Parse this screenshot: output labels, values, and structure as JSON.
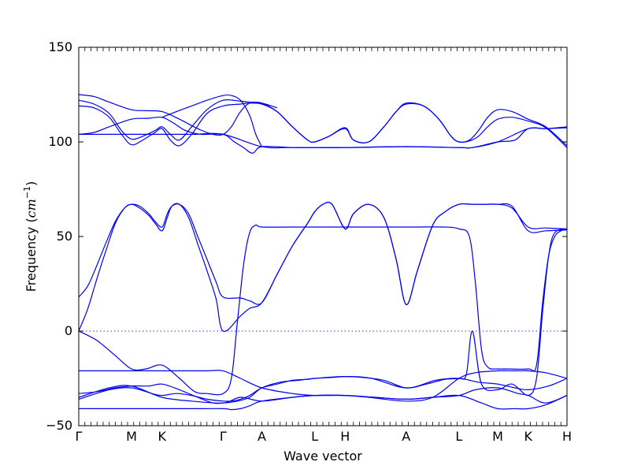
{
  "chart_data": {
    "type": "line",
    "title": "",
    "xlabel": "Wave vector",
    "ylabel_prefix": "Frequency (",
    "ylabel_unit": "cm",
    "ylabel_exp": "−1",
    "ylabel_suffix": ")",
    "ylim": [
      -50,
      150
    ],
    "yticks": [
      -50,
      0,
      50,
      100,
      150
    ],
    "xlim": [
      0,
      16
    ],
    "kpoints": [
      {
        "label": "Γ",
        "x": 0
      },
      {
        "label": "M",
        "x": 1.73
      },
      {
        "label": "K",
        "x": 2.73
      },
      {
        "label": "Γ",
        "x": 4.73
      },
      {
        "label": "A",
        "x": 6.0
      },
      {
        "label": "L",
        "x": 7.73
      },
      {
        "label": "H",
        "x": 8.73
      },
      {
        "label": "A",
        "x": 10.73
      },
      {
        "label": "L",
        "x": 12.46
      },
      {
        "label": "M",
        "x": 13.73
      },
      {
        "label": "K",
        "x": 14.73
      },
      {
        "label": "H",
        "x": 16.0
      }
    ],
    "series": [
      {
        "x": [
          0,
          0.3,
          0.6,
          0.9,
          1.2,
          1.5,
          1.73,
          2.0,
          2.3,
          2.5,
          2.73,
          2.9,
          3.05,
          3.3,
          3.6,
          3.9,
          4.2,
          4.5,
          4.73,
          5.3,
          5.6,
          6.0,
          6.5,
          7.0,
          7.5,
          7.73,
          8.0,
          8.3,
          8.73,
          9.0,
          9.5,
          10.0,
          10.4,
          10.73,
          11.1,
          11.6,
          12.0,
          12.46,
          12.9,
          13.3,
          13.73,
          14.2,
          14.73,
          15.3,
          16.0
        ],
        "y": [
          0,
          12,
          28,
          43,
          57,
          65,
          67,
          65,
          61,
          57,
          53,
          60,
          66,
          67,
          60,
          46,
          32,
          17,
          0,
          8,
          12,
          15,
          30,
          45,
          57,
          63,
          67,
          67,
          54,
          62,
          67,
          60,
          38,
          14,
          32,
          56,
          63,
          67,
          67,
          67,
          67,
          65,
          55,
          54.5,
          54
        ]
      },
      {
        "x": [
          0,
          0.3,
          0.6,
          0.9,
          1.2,
          1.5,
          1.73,
          2.0,
          2.3,
          2.5,
          2.73,
          2.9,
          3.05,
          3.3,
          3.6,
          3.9,
          4.2,
          4.5,
          4.73,
          5.3,
          5.6,
          6.0,
          6.5,
          7.0,
          7.5,
          7.73,
          8.0,
          8.3,
          8.73,
          9.0,
          9.5,
          10.0,
          10.4,
          10.73,
          11.1,
          11.6,
          12.0,
          12.46,
          12.9,
          13.3,
          13.73,
          14.2,
          14.73,
          15.3,
          16.0
        ],
        "y": [
          18,
          24,
          35,
          47,
          58,
          65,
          67,
          66,
          62,
          58,
          55,
          62,
          66,
          67,
          62,
          50,
          38,
          26,
          18,
          17.5,
          16,
          15,
          30,
          45,
          57,
          63,
          67,
          67,
          54,
          62,
          67,
          60,
          38,
          14,
          32,
          56,
          63,
          67,
          67,
          67,
          67,
          66,
          53,
          53,
          53.5
        ]
      },
      {
        "x": [
          0,
          0.6,
          1.2,
          1.73,
          2.2,
          2.73,
          3.3,
          3.8,
          4.2,
          4.73,
          5.0,
          5.2,
          5.4,
          5.6,
          5.8,
          6.0,
          7.0,
          8.0,
          9.0,
          10.0,
          11.0,
          12.0,
          12.46,
          12.8,
          13.0,
          13.2,
          13.4,
          13.73,
          14.0,
          14.73,
          15.0,
          15.2,
          15.4,
          15.6,
          15.8,
          16.0
        ],
        "y": [
          0,
          -5,
          -13,
          -20,
          -20,
          -18,
          -25,
          -32,
          -33,
          -33,
          -25,
          5,
          35,
          52,
          56,
          55,
          55,
          55,
          55,
          55,
          55,
          55,
          54,
          50,
          25,
          -10,
          -19,
          -20,
          -20,
          -20,
          -18,
          15,
          40,
          50,
          53,
          54
        ]
      },
      {
        "x": [
          0,
          1.0,
          1.73,
          2.4,
          2.73,
          3.2,
          3.7,
          4.2,
          4.73,
          5.0,
          5.3,
          5.6,
          6.0,
          6.5,
          7.0,
          7.5,
          7.73,
          8.3,
          8.73,
          9.3,
          10.0,
          10.73,
          11.4,
          12.0,
          12.46,
          12.7,
          12.9,
          13.2,
          13.73,
          14.2,
          14.73,
          15.0,
          15.2,
          15.4,
          15.6,
          16.0
        ],
        "y": [
          -36,
          -31,
          -30,
          -33,
          -34,
          -33,
          -34,
          -36,
          -37,
          -37,
          -36,
          -34,
          -30,
          -28,
          -26,
          -25.5,
          -25,
          -24.5,
          -24,
          -24.5,
          -26,
          -30,
          -28,
          -25.5,
          -25,
          -23,
          0,
          -28,
          -31,
          -28,
          -34,
          -25,
          10,
          40,
          52,
          54
        ]
      },
      {
        "x": [
          0,
          1.0,
          1.73,
          2.73,
          3.5,
          4.2,
          4.73,
          5.3,
          6.0,
          7.0,
          7.73,
          8.73,
          9.5,
          10.73,
          11.6,
          12.46,
          13.0,
          13.73,
          14.3,
          14.73,
          15.3,
          16.0
        ],
        "y": [
          -21,
          -21,
          -21,
          -21,
          -21,
          -21,
          -21,
          -25,
          -30,
          -33,
          -34,
          -34,
          -35,
          -37,
          -35,
          -25,
          -22,
          -21,
          -21,
          -21,
          -22,
          -25
        ]
      },
      {
        "x": [
          0,
          0.6,
          1.2,
          1.73,
          2.3,
          2.73,
          3.3,
          3.9,
          4.4,
          4.73,
          5.2,
          5.6,
          6.0,
          6.6,
          7.2,
          7.73,
          8.73,
          9.6,
          10.73,
          11.7,
          12.46,
          13.1,
          13.73,
          14.3,
          14.73,
          15.4,
          16.0
        ],
        "y": [
          -33,
          -32,
          -30,
          -29,
          -29,
          -28,
          -31,
          -35,
          -38,
          -38,
          -37,
          -35,
          -30,
          -27,
          -26,
          -25,
          -24,
          -25,
          -30,
          -26,
          -25,
          -27,
          -28,
          -30,
          -31,
          -29,
          -25
        ]
      },
      {
        "x": [
          0,
          1.0,
          1.73,
          2.73,
          3.7,
          4.73,
          5.3,
          6.0,
          7.0,
          7.73,
          8.73,
          9.7,
          10.73,
          11.6,
          12.46,
          13.0,
          13.73,
          14.4,
          14.73,
          15.3,
          16.0
        ],
        "y": [
          -35,
          -30,
          -29,
          -35,
          -37,
          -38,
          -35,
          -37,
          -35,
          -34,
          -34,
          -35,
          -36,
          -35,
          -34,
          -31,
          -30,
          -33,
          -34,
          -38,
          -34
        ]
      },
      {
        "x": [
          0,
          1.0,
          1.73,
          2.73,
          3.7,
          4.73,
          5.0,
          5.3,
          5.6,
          6.0,
          7.0,
          7.73,
          8.73,
          9.7,
          10.73,
          11.6,
          12.46,
          13.2,
          13.73,
          14.3,
          14.73,
          15.3,
          16.0
        ],
        "y": [
          -41,
          -41,
          -41,
          -41,
          -41,
          -41,
          -41.5,
          -41,
          -39.5,
          -37,
          -35,
          -34,
          -34,
          -35,
          -36,
          -35,
          -34,
          -38,
          -41,
          -41,
          -41,
          -39,
          -34
        ]
      },
      {
        "x": [
          0,
          0.5,
          1.0,
          1.73,
          2.3,
          2.73,
          3.1,
          3.5,
          4.0,
          4.73,
          5.1,
          5.4,
          5.7,
          6.0,
          7.0,
          7.73,
          8.73,
          10.73,
          12.46,
          12.9,
          13.73,
          14.3,
          14.73,
          15.3,
          16.0
        ],
        "y": [
          104,
          105,
          108,
          112,
          112.5,
          113,
          110,
          106,
          104,
          104,
          100,
          97,
          94,
          97.5,
          97,
          97,
          97,
          97.5,
          97,
          97,
          100,
          101,
          107,
          107,
          107.5
        ]
      },
      {
        "x": [
          0,
          0.5,
          1.0,
          1.4,
          1.73,
          2.1,
          2.5,
          2.73,
          3.0,
          3.3,
          3.7,
          4.2,
          4.73,
          5.3,
          5.6,
          6.0,
          6.5,
          7.0,
          7.5,
          7.73,
          8.2,
          8.73,
          9.0,
          9.5,
          10.0,
          10.4,
          10.73,
          11.3,
          11.8,
          12.2,
          12.46,
          12.8,
          13.1,
          13.4,
          13.73,
          14.2,
          14.73,
          15.3,
          16.0
        ],
        "y": [
          119,
          118,
          113,
          104,
          98.5,
          101,
          105,
          107,
          101,
          98,
          104,
          115,
          119,
          120,
          120.5,
          120,
          116,
          108,
          101,
          100,
          103,
          107,
          101,
          100,
          108,
          116,
          120,
          119,
          112,
          103,
          100,
          101,
          106,
          113,
          117,
          116,
          112,
          108,
          98
        ]
      },
      {
        "x": [
          0,
          0.5,
          1.0,
          1.4,
          1.73,
          2.1,
          2.5,
          2.73,
          3.0,
          3.3,
          3.7,
          4.2,
          4.73,
          5.3,
          5.6,
          6.0,
          6.5,
          7.0,
          7.5,
          7.73,
          8.2,
          8.73,
          9.0,
          9.5,
          10.0,
          10.4,
          10.73,
          11.3,
          11.8,
          12.2,
          12.46,
          12.8,
          13.1,
          13.4,
          13.73,
          14.2,
          14.73,
          15.3,
          16.0
        ],
        "y": [
          122,
          120,
          115,
          106,
          101.5,
          103,
          106,
          108,
          104,
          101,
          108,
          117,
          122,
          121.5,
          121,
          120.5,
          116,
          108,
          101,
          100,
          103,
          107.5,
          101,
          100,
          108,
          116,
          120.5,
          119,
          112,
          103,
          100,
          100.5,
          103,
          108,
          112,
          113,
          111,
          107.5,
          97
        ]
      },
      {
        "x": [
          0,
          0.5,
          1.0,
          1.73,
          2.2,
          2.73,
          3.3,
          3.9,
          4.4,
          4.73,
          5.0,
          5.3,
          5.6,
          6.0,
          6.5
        ],
        "y": [
          125,
          124,
          121,
          117,
          116.5,
          116,
          112,
          107,
          104,
          104,
          108,
          116,
          120.5,
          120.5,
          118
        ]
      },
      {
        "x": [
          2.73,
          3.2,
          3.7,
          4.2,
          4.73,
          5.0,
          5.3,
          5.6,
          5.8,
          6.0
        ],
        "y": [
          113,
          116,
          119,
          122,
          124.5,
          124.5,
          122,
          114,
          104,
          97.5
        ]
      },
      {
        "x": [
          0,
          1.73,
          2.2,
          2.73,
          3.2,
          3.8,
          4.73,
          6.0,
          7.0,
          8.73,
          10.73,
          12.46,
          12.9,
          13.73,
          14.73,
          15.3,
          16.0
        ],
        "y": [
          104,
          104,
          104,
          104,
          104,
          104,
          104,
          97.5,
          97,
          97,
          97.5,
          97,
          97,
          100,
          107,
          107,
          108
        ]
      }
    ]
  }
}
